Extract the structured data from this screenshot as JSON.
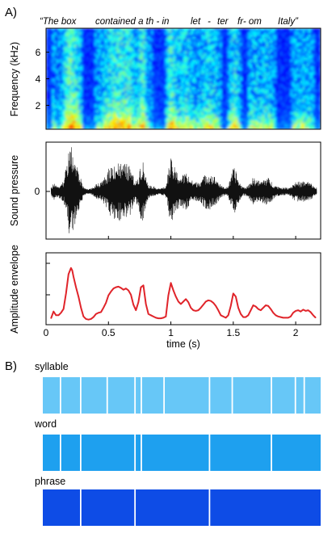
{
  "panel_a_label": "A)",
  "panel_b_label": "B)",
  "sentence_words": [
    "“The box",
    "contained a th - in",
    "let",
    "-",
    "ter",
    "fr- om",
    "Italy”"
  ],
  "chart_data": [
    {
      "type": "heatmap",
      "ylabel": "Frequency (kHz)",
      "yticks": [
        2,
        4,
        6
      ],
      "ylim": [
        0.2,
        7.8
      ],
      "xlim": [
        0,
        2.2
      ],
      "colormap": "jet"
    },
    {
      "type": "line",
      "ylabel": "Sound pressure",
      "yticks": [
        0
      ],
      "xlim": [
        0,
        2.2
      ],
      "color": "#111111"
    },
    {
      "type": "line",
      "ylabel": "Amplitude envelope",
      "xlabel": "time (s)",
      "xticks": [
        0,
        0.5,
        1,
        1.5,
        2
      ],
      "xtick_labels": [
        "0",
        "0.5",
        "1",
        "1.5",
        "2"
      ],
      "xlim": [
        0,
        2.2
      ],
      "ylim": [
        0,
        1
      ],
      "color": "#e0242a",
      "series": [
        {
          "x": [
            0.04,
            0.06,
            0.08,
            0.1,
            0.12,
            0.14,
            0.16,
            0.18,
            0.2,
            0.21,
            0.22,
            0.24,
            0.26,
            0.28,
            0.3,
            0.32,
            0.34,
            0.36,
            0.38,
            0.4,
            0.42,
            0.44,
            0.46,
            0.48,
            0.5,
            0.52,
            0.54,
            0.56,
            0.58,
            0.6,
            0.62,
            0.64,
            0.66,
            0.68,
            0.7,
            0.72,
            0.74,
            0.76,
            0.78,
            0.8,
            0.82,
            0.84,
            0.86,
            0.88,
            0.9,
            0.92,
            0.94,
            0.96,
            0.98,
            1.0,
            1.02,
            1.04,
            1.06,
            1.08,
            1.1,
            1.12,
            1.14,
            1.16,
            1.18,
            1.2,
            1.22,
            1.24,
            1.26,
            1.28,
            1.3,
            1.32,
            1.34,
            1.36,
            1.38,
            1.4,
            1.42,
            1.44,
            1.46,
            1.48,
            1.5,
            1.52,
            1.54,
            1.56,
            1.58,
            1.6,
            1.62,
            1.64,
            1.66,
            1.68,
            1.7,
            1.72,
            1.74,
            1.76,
            1.78,
            1.8,
            1.82,
            1.84,
            1.86,
            1.88,
            1.9,
            1.92,
            1.94,
            1.96,
            1.98,
            2.0,
            2.02,
            2.04,
            2.06,
            2.08,
            2.1,
            2.12,
            2.14,
            2.16
          ],
          "y": [
            0.05,
            0.16,
            0.1,
            0.1,
            0.14,
            0.2,
            0.45,
            0.76,
            0.86,
            0.82,
            0.72,
            0.55,
            0.4,
            0.22,
            0.08,
            0.04,
            0.03,
            0.04,
            0.07,
            0.12,
            0.14,
            0.15,
            0.22,
            0.3,
            0.42,
            0.48,
            0.53,
            0.55,
            0.56,
            0.54,
            0.51,
            0.53,
            0.5,
            0.43,
            0.27,
            0.18,
            0.31,
            0.55,
            0.58,
            0.28,
            0.12,
            0.1,
            0.08,
            0.06,
            0.05,
            0.05,
            0.06,
            0.08,
            0.42,
            0.62,
            0.5,
            0.4,
            0.32,
            0.28,
            0.32,
            0.36,
            0.31,
            0.22,
            0.18,
            0.17,
            0.18,
            0.22,
            0.27,
            0.32,
            0.34,
            0.33,
            0.3,
            0.25,
            0.18,
            0.1,
            0.08,
            0.06,
            0.1,
            0.25,
            0.45,
            0.4,
            0.22,
            0.12,
            0.07,
            0.07,
            0.1,
            0.18,
            0.26,
            0.24,
            0.2,
            0.18,
            0.22,
            0.26,
            0.25,
            0.2,
            0.14,
            0.1,
            0.08,
            0.07,
            0.06,
            0.06,
            0.06,
            0.08,
            0.14,
            0.17,
            0.18,
            0.16,
            0.19,
            0.17,
            0.18,
            0.15,
            0.1,
            0.06
          ]
        }
      ]
    }
  ],
  "segments": [
    {
      "label": "syllable",
      "color": "#67c7f7",
      "boundaries": [
        0.14,
        0.3,
        0.51,
        0.73,
        0.78,
        0.96,
        1.32,
        1.5,
        1.81,
        2.0,
        2.07
      ]
    },
    {
      "label": "word",
      "color": "#1ea0ef",
      "boundaries": [
        0.14,
        0.3,
        0.73,
        0.78,
        1.32,
        1.81
      ]
    },
    {
      "label": "phrase",
      "color": "#0e4ce6",
      "boundaries": [
        0.3,
        0.73,
        1.32
      ]
    }
  ]
}
